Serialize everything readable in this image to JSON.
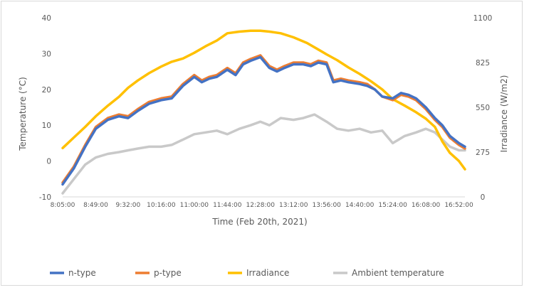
{
  "chart_data": {
    "type": "line",
    "xlabel": "Time (Feb 20th, 2021)",
    "ylabel": "Temperature  (°C)",
    "y2label": "Irradiance  (W/m2)",
    "x_ticks": [
      "8:05:00",
      "8:49:00",
      "9:32:00",
      "10:16:00",
      "11:00:00",
      "11:44:00",
      "12:28:00",
      "13:12:00",
      "13:56:00",
      "14:40:00",
      "15:24:00",
      "16:08:00",
      "16:52:00"
    ],
    "ylim": [
      -10,
      40
    ],
    "y_ticks": [
      "40",
      "30",
      "20",
      "10",
      "0",
      "-10"
    ],
    "y2lim": [
      0,
      1100
    ],
    "y2_ticks": [
      "1100",
      "825",
      "550",
      "275",
      "0"
    ],
    "grid": false,
    "legend": "bottom",
    "series": [
      {
        "name": "n-type",
        "axis": "left",
        "color": "#4472C4",
        "x": [
          "8:05",
          "8:20",
          "8:35",
          "8:49",
          "9:05",
          "9:20",
          "9:32",
          "9:45",
          "10:00",
          "10:16",
          "10:30",
          "10:45",
          "11:00",
          "11:10",
          "11:20",
          "11:30",
          "11:44",
          "11:55",
          "12:05",
          "12:15",
          "12:28",
          "12:40",
          "12:50",
          "13:00",
          "13:12",
          "13:25",
          "13:35",
          "13:45",
          "13:56",
          "14:05",
          "14:15",
          "14:25",
          "14:40",
          "14:50",
          "15:00",
          "15:10",
          "15:24",
          "15:35",
          "15:45",
          "15:55",
          "16:08",
          "16:20",
          "16:30",
          "16:40",
          "16:52",
          "17:00"
        ],
        "y": [
          -6.5,
          -2,
          4,
          9,
          11.5,
          12.5,
          12,
          14,
          16,
          17,
          17.5,
          21,
          23.5,
          22,
          23,
          23.5,
          25.5,
          24,
          27,
          28,
          29,
          26,
          25,
          26,
          27,
          27,
          26.5,
          27.5,
          27,
          22,
          22.5,
          22,
          21.5,
          21,
          20,
          18,
          17.5,
          19,
          18.5,
          17.5,
          15,
          12,
          10,
          7,
          5,
          4
        ]
      },
      {
        "name": "p-type",
        "axis": "left",
        "color": "#ED7D31",
        "x": [
          "8:05",
          "8:20",
          "8:35",
          "8:49",
          "9:05",
          "9:20",
          "9:32",
          "9:45",
          "10:00",
          "10:16",
          "10:30",
          "10:45",
          "11:00",
          "11:10",
          "11:20",
          "11:30",
          "11:44",
          "11:55",
          "12:05",
          "12:15",
          "12:28",
          "12:40",
          "12:50",
          "13:00",
          "13:12",
          "13:25",
          "13:35",
          "13:45",
          "13:56",
          "14:05",
          "14:15",
          "14:25",
          "14:40",
          "14:50",
          "15:00",
          "15:10",
          "15:24",
          "15:35",
          "15:45",
          "15:55",
          "16:08",
          "16:20",
          "16:30",
          "16:40",
          "16:52",
          "17:00"
        ],
        "y": [
          -6,
          -1.5,
          4.5,
          9.5,
          12,
          13,
          12.5,
          14.5,
          16.5,
          17.5,
          18,
          21.5,
          24,
          22.5,
          23.5,
          24,
          26,
          24.5,
          27.5,
          28.5,
          29.5,
          26.5,
          25.5,
          26.5,
          27.5,
          27.5,
          27,
          28,
          27.5,
          22.5,
          23,
          22.5,
          22,
          21.5,
          20,
          18,
          17,
          18.5,
          18,
          17,
          14.5,
          11.5,
          9.5,
          6.5,
          4.5,
          3.5
        ]
      },
      {
        "name": "Irradiance",
        "axis": "right",
        "color": "#FFC000",
        "x": [
          "8:05",
          "8:20",
          "8:35",
          "8:49",
          "9:05",
          "9:20",
          "9:32",
          "9:45",
          "10:00",
          "10:16",
          "10:30",
          "10:45",
          "11:00",
          "11:15",
          "11:30",
          "11:44",
          "12:00",
          "12:15",
          "12:28",
          "12:40",
          "12:55",
          "13:12",
          "13:30",
          "13:45",
          "13:56",
          "14:10",
          "14:25",
          "14:40",
          "14:55",
          "15:10",
          "15:24",
          "15:40",
          "15:55",
          "16:08",
          "16:20",
          "16:30",
          "16:40",
          "16:52",
          "17:00"
        ],
        "y": [
          300,
          365,
          430,
          495,
          560,
          615,
          670,
          715,
          760,
          800,
          830,
          850,
          885,
          925,
          960,
          1005,
          1015,
          1020,
          1020,
          1015,
          1005,
          980,
          945,
          905,
          875,
          840,
          795,
          755,
          710,
          660,
          600,
          560,
          520,
          480,
          430,
          340,
          270,
          220,
          170
        ]
      },
      {
        "name": "Ambient temperature",
        "axis": "left",
        "color": "#C9C9C9",
        "x": [
          "8:05",
          "8:20",
          "8:35",
          "8:49",
          "9:05",
          "9:20",
          "9:32",
          "9:45",
          "10:00",
          "10:16",
          "10:30",
          "10:45",
          "11:00",
          "11:15",
          "11:30",
          "11:44",
          "12:00",
          "12:15",
          "12:28",
          "12:40",
          "12:55",
          "13:12",
          "13:25",
          "13:40",
          "13:56",
          "14:10",
          "14:25",
          "14:40",
          "14:55",
          "15:10",
          "15:24",
          "15:40",
          "15:55",
          "16:08",
          "16:20",
          "16:30",
          "16:40",
          "16:52",
          "17:00"
        ],
        "y": [
          -9,
          -5,
          -1,
          1,
          2,
          2.5,
          3,
          3.5,
          4,
          4,
          4.5,
          6,
          7.5,
          8,
          8.5,
          7.5,
          9,
          10,
          11,
          10,
          12,
          11.5,
          12,
          13,
          11,
          9,
          8.5,
          9,
          8,
          8.5,
          5,
          7,
          8,
          9,
          8,
          6,
          4,
          3,
          3
        ]
      }
    ]
  }
}
